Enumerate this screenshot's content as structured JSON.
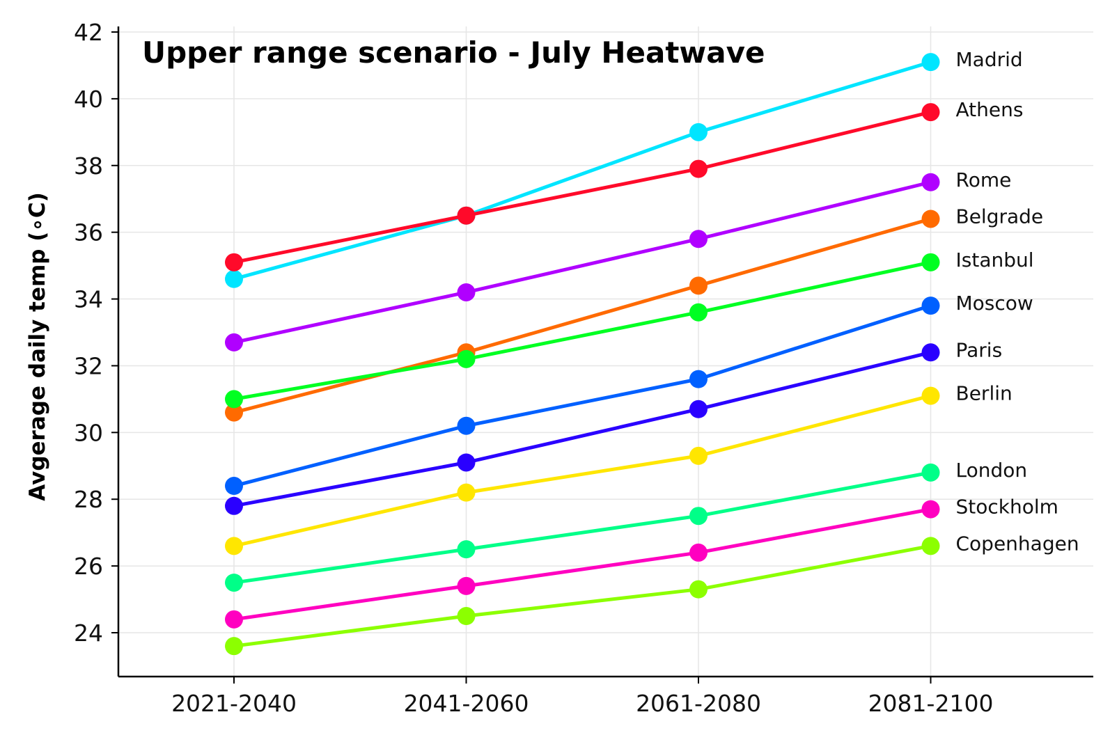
{
  "chart_data": {
    "type": "line",
    "title": "Upper range scenario - July Heatwave",
    "xlabel": "",
    "ylabel": "Avgerage daily temp (∘C)",
    "categories": [
      "2021-2040",
      "2041-2060",
      "2061-2080",
      "2081-2100"
    ],
    "ylim": [
      22.6,
      42
    ],
    "yticks": [
      24,
      26,
      28,
      30,
      32,
      34,
      36,
      38,
      40,
      42
    ],
    "grid": true,
    "legend": "inline labels at right end of lines",
    "series": [
      {
        "name": "Madrid",
        "color": "#00e5ff",
        "values": [
          34.6,
          36.5,
          39.0,
          41.1
        ]
      },
      {
        "name": "Athens",
        "color": "#ff0a2a",
        "values": [
          35.1,
          36.5,
          37.9,
          39.6
        ]
      },
      {
        "name": "Rome",
        "color": "#b000ff",
        "values": [
          32.7,
          34.2,
          35.8,
          37.5
        ]
      },
      {
        "name": "Belgrade",
        "color": "#ff6a00",
        "values": [
          30.6,
          32.4,
          34.4,
          36.4
        ]
      },
      {
        "name": "Istanbul",
        "color": "#00ff22",
        "values": [
          31.0,
          32.2,
          33.6,
          35.1
        ]
      },
      {
        "name": "Moscow",
        "color": "#0060ff",
        "values": [
          28.4,
          30.2,
          31.6,
          33.8
        ]
      },
      {
        "name": "Paris",
        "color": "#2a00ff",
        "values": [
          27.8,
          29.1,
          30.7,
          32.4
        ]
      },
      {
        "name": "Berlin",
        "color": "#ffe600",
        "values": [
          26.6,
          28.2,
          29.3,
          31.1
        ]
      },
      {
        "name": "London",
        "color": "#00ff88",
        "values": [
          25.5,
          26.5,
          27.5,
          28.8
        ]
      },
      {
        "name": "Stockholm",
        "color": "#ff00c0",
        "values": [
          24.4,
          25.4,
          26.4,
          27.7
        ]
      },
      {
        "name": "Copenhagen",
        "color": "#8cff00",
        "values": [
          23.6,
          24.5,
          25.3,
          26.6
        ]
      }
    ]
  }
}
